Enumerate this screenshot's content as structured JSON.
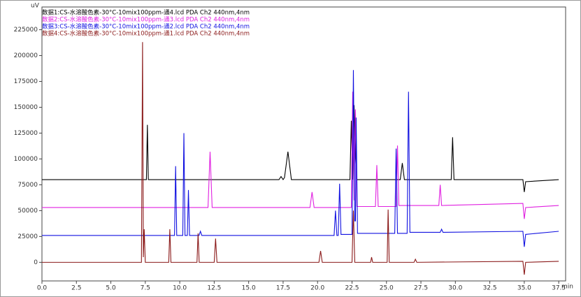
{
  "chart_data": {
    "type": "line",
    "y_label": "uV",
    "x_label": "min",
    "xlim": [
      0,
      38
    ],
    "ylim": [
      -18000,
      247000
    ],
    "xticks": [
      {
        "value": 0,
        "label": "0.0"
      },
      2.5,
      {
        "value": 5,
        "label": "5.0"
      },
      7.5,
      {
        "value": 10,
        "label": "10.0"
      },
      12.5,
      {
        "value": 15,
        "label": "15.0"
      },
      17.5,
      {
        "value": 20,
        "label": "20.0"
      },
      22.5,
      {
        "value": 25,
        "label": "25.0"
      },
      27.5,
      {
        "value": 30,
        "label": "30.0"
      },
      32.5,
      {
        "value": 35,
        "label": "35.0"
      },
      37.5
    ],
    "yticks": [
      0,
      25000,
      50000,
      75000,
      100000,
      125000,
      150000,
      175000,
      200000,
      225000
    ],
    "series": [
      {
        "name": "数据1:CS-水溶酸色素-30°C-10mix100ppm-通4.lcd PDA Ch2 440nm,4nm",
        "color": "#000000",
        "x": [
          0,
          7.5,
          7.58,
          7.65,
          7.72,
          7.8,
          17.2,
          17.35,
          17.5,
          17.6,
          17.85,
          18.1,
          22.35,
          22.45,
          22.55,
          22.65,
          22.75,
          22.85,
          22.95,
          26.0,
          26.15,
          26.3,
          26.45,
          29.7,
          29.8,
          29.9,
          34.9,
          35.0,
          35.1,
          37.5
        ],
        "values": [
          80000,
          80000,
          80000,
          133000,
          80000,
          80000,
          80000,
          83000,
          80000,
          82000,
          107000,
          80000,
          80000,
          137000,
          80000,
          152000,
          102000,
          80000,
          80000,
          80000,
          96000,
          80000,
          80000,
          80000,
          121000,
          80000,
          80000,
          68000,
          78000,
          80000
        ]
      },
      {
        "name": "数据2:CS-水溶酸色素-30°C-10mix100ppm-通3.lcd PDA Ch2 440nm,4nm",
        "color": "#e020e0",
        "x": [
          0,
          12.05,
          12.2,
          12.35,
          19.45,
          19.6,
          19.75,
          22.45,
          22.55,
          22.65,
          22.75,
          22.85,
          24.2,
          24.3,
          24.4,
          25.7,
          25.8,
          25.9,
          28.8,
          28.9,
          29.0,
          34.9,
          35.0,
          35.1,
          37.5
        ],
        "values": [
          53000,
          53000,
          107000,
          53000,
          53000,
          68000,
          53000,
          53000,
          165000,
          60000,
          148000,
          54000,
          54000,
          94000,
          54000,
          54000,
          113000,
          55000,
          55000,
          75000,
          55000,
          57000,
          42000,
          53000,
          55000
        ]
      },
      {
        "name": "数据3:CS-水溶酸色素-30°C-10mix100ppm-通2.lcd PDA Ch2 440nm,4nm",
        "color": "#1010e0",
        "x": [
          0,
          9.62,
          9.7,
          9.78,
          10.22,
          10.3,
          10.38,
          10.55,
          10.63,
          10.71,
          11.4,
          11.5,
          11.6,
          21.2,
          21.3,
          21.4,
          21.5,
          21.6,
          21.7,
          22.5,
          22.6,
          22.7,
          22.75,
          22.8,
          22.9,
          25.6,
          25.7,
          25.8,
          26.5,
          26.6,
          26.7,
          28.9,
          29.0,
          29.1,
          34.9,
          35.0,
          35.1,
          37.5
        ],
        "values": [
          26000,
          26000,
          93000,
          26000,
          26000,
          125000,
          26000,
          26000,
          70000,
          26000,
          26000,
          30000,
          26000,
          26000,
          50000,
          26000,
          26000,
          76000,
          27000,
          27000,
          186000,
          40000,
          40000,
          140000,
          28000,
          28000,
          110000,
          28000,
          28000,
          165000,
          29000,
          29000,
          32000,
          29000,
          30000,
          15000,
          27000,
          30000
        ]
      },
      {
        "name": "数据4:CS-水溶酸色素-30°C-10mix100ppm-通1.lcd PDA Ch2 440nm,4nm",
        "color": "#8b1a1a",
        "x": [
          0,
          7.22,
          7.3,
          7.36,
          7.42,
          7.5,
          9.2,
          9.28,
          9.36,
          11.25,
          11.33,
          11.41,
          12.5,
          12.6,
          12.7,
          20.1,
          20.22,
          20.34,
          22.5,
          22.6,
          22.7,
          23.85,
          23.92,
          24.0,
          25.05,
          25.12,
          25.2,
          27.0,
          27.1,
          27.2,
          34.9,
          35.0,
          35.1,
          37.5
        ],
        "values": [
          0,
          0,
          213000,
          5000,
          32000,
          0,
          0,
          32000,
          0,
          0,
          28000,
          0,
          0,
          23000,
          0,
          0,
          11000,
          0,
          0,
          50000,
          0,
          0,
          5000,
          0,
          0,
          51000,
          0,
          0,
          3000,
          0,
          1000,
          -12000,
          0,
          1000
        ]
      }
    ]
  }
}
